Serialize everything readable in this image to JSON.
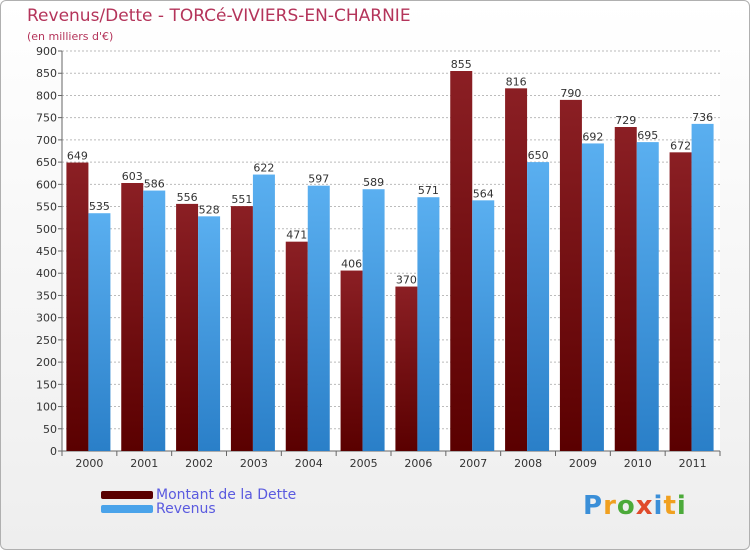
{
  "header": {
    "title": "Revenus/Dette - TORCé-VIVIERS-EN-CHARNIE",
    "subtitle": "(en milliers d'€)"
  },
  "legend": {
    "debt_label": "Montant de la Dette",
    "revenue_label": "Revenus"
  },
  "logo": {
    "text": "Proxiti"
  },
  "colors": {
    "debt": "#8b1f24",
    "debt_dark": "#5a0000",
    "revenue": "#5aaff0",
    "revenue_dark": "#2a7fc8",
    "title": "#b4345a",
    "legend_text": "#5a5adf",
    "grid": "#bbbbbb"
  },
  "chart_data": {
    "type": "bar",
    "title": "Revenus/Dette - TORCé-VIVIERS-EN-CHARNIE",
    "subtitle": "(en milliers d'€)",
    "xlabel": "",
    "ylabel": "",
    "ylim": [
      0,
      900
    ],
    "ytick_step": 50,
    "grid": true,
    "legend_position": "bottom-left",
    "categories": [
      "2000",
      "2001",
      "2002",
      "2003",
      "2004",
      "2005",
      "2006",
      "2007",
      "2008",
      "2009",
      "2010",
      "2011"
    ],
    "series": [
      {
        "name": "Montant de la Dette",
        "values": [
          649,
          603,
          556,
          551,
          471,
          406,
          370,
          855,
          816,
          790,
          729,
          672
        ]
      },
      {
        "name": "Revenus",
        "values": [
          535,
          586,
          528,
          622,
          597,
          589,
          571,
          564,
          650,
          692,
          695,
          736
        ]
      }
    ]
  }
}
